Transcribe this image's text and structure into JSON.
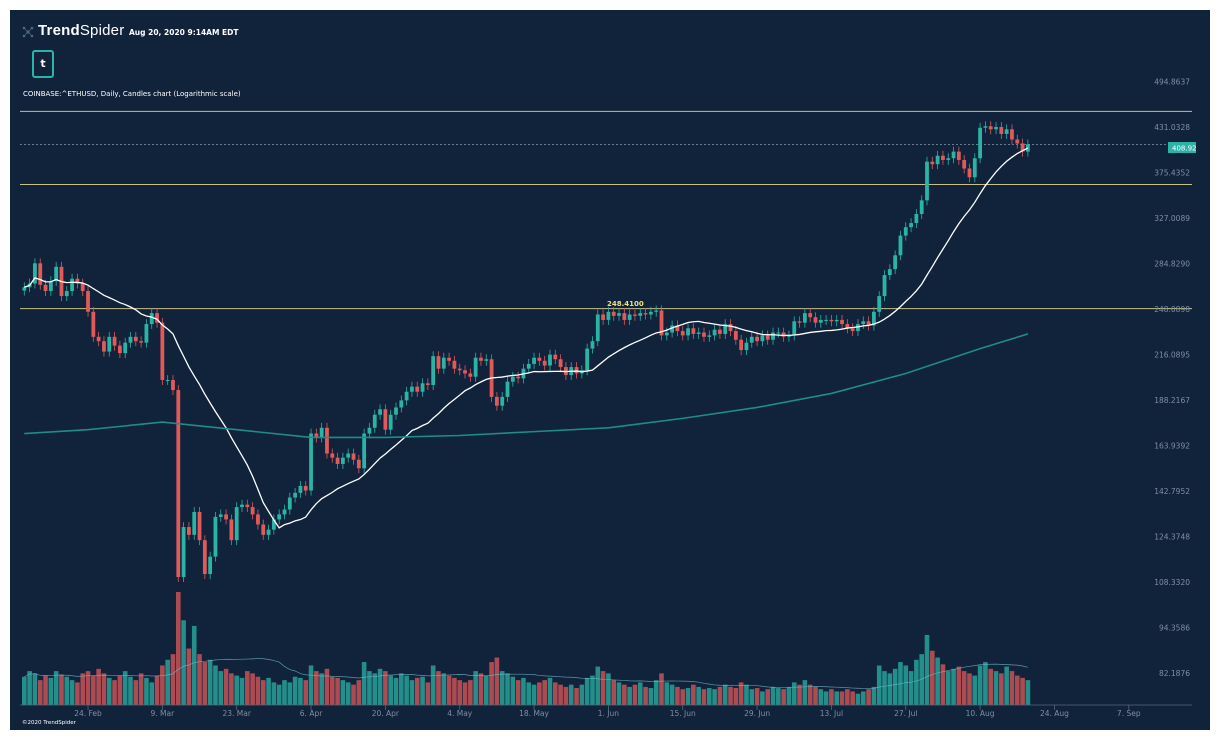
{
  "header": {
    "brand_bold": "Trend",
    "brand_light": "Spider",
    "timestamp": "Aug 20, 2020 9:14AM EDT",
    "ticker_icon": "t",
    "chart_title": "COINBASE:^ETHUSD, Daily, Candles chart (Logarithmic scale)"
  },
  "footer": {
    "copyright": "©2020 TrendSpider"
  },
  "colors": {
    "background": "#10233b",
    "up": "#2bb3a6",
    "down": "#e05a5a",
    "ma_short": "#ffffff",
    "ma_long": "#1f8c88",
    "level": "#c8c08a"
  },
  "chart_data": {
    "type": "candlestick",
    "title": "COINBASE:^ETHUSD, Daily, Candles chart (Logarithmic scale)",
    "y_scale": "log",
    "ylim": [
      78,
      540
    ],
    "y_ticks": [
      "494.8637",
      "431.0328",
      "375.4352",
      "327.0089",
      "284.8290",
      "248.0898",
      "216.0895",
      "188.2167",
      "163.9392",
      "142.7952",
      "124.3748",
      "108.3320",
      "94.3586",
      "82.1876"
    ],
    "x_ticks": [
      "24. Feb",
      "9. Mar",
      "23. Mar",
      "6. Apr",
      "20. Apr",
      "4. May",
      "18. May",
      "1. Jun",
      "15. Jun",
      "29. Jun",
      "13. Jul",
      "27. Jul",
      "10. Aug",
      "24. Aug",
      "7. Sep"
    ],
    "current_price": "408.92",
    "annotation": "248.4100",
    "horizontal_levels": [
      452,
      362,
      248.41
    ],
    "close": [
      265,
      268,
      285,
      267,
      262,
      270,
      282,
      258,
      262,
      272,
      268,
      262,
      246,
      228,
      225,
      218,
      228,
      222,
      217,
      224,
      228,
      225,
      224,
      237,
      245,
      238,
      200,
      200,
      194,
      110,
      128,
      125,
      134,
      123,
      111,
      117,
      132,
      133,
      131,
      123,
      136,
      137,
      136,
      133,
      129,
      125,
      127,
      131,
      133,
      135,
      140,
      142,
      145,
      143,
      170,
      168,
      173,
      160,
      158,
      155,
      158,
      160,
      157,
      153,
      170,
      173,
      180,
      183,
      172,
      180,
      184,
      188,
      193,
      196,
      193,
      198,
      197,
      215,
      207,
      214,
      212,
      207,
      206,
      204,
      202,
      214,
      212,
      213,
      190,
      185,
      190,
      199,
      202,
      201,
      207,
      210,
      214,
      212,
      209,
      216,
      213,
      208,
      203,
      208,
      204,
      206,
      220,
      225,
      244,
      240,
      246,
      243,
      245,
      240,
      244,
      243,
      245,
      244,
      246,
      247,
      229,
      231,
      236,
      232,
      229,
      234,
      230,
      231,
      228,
      229,
      233,
      230,
      237,
      232,
      226,
      219,
      224,
      228,
      225,
      229,
      226,
      231,
      231,
      228,
      229,
      239,
      238,
      245,
      242,
      238,
      240,
      240,
      239,
      240,
      237,
      234,
      232,
      237,
      239,
      236,
      246,
      258,
      275,
      280,
      292,
      310,
      318,
      322,
      331,
      345,
      388,
      385,
      395,
      390,
      392,
      400,
      390,
      380,
      370,
      392,
      430,
      432,
      428,
      431,
      422,
      428,
      415,
      410,
      400,
      408.92
    ],
    "volume_relative": [
      25,
      30,
      28,
      22,
      26,
      24,
      30,
      27,
      25,
      22,
      20,
      28,
      30,
      26,
      32,
      28,
      24,
      22,
      26,
      30,
      25,
      22,
      28,
      24,
      20,
      26,
      35,
      40,
      45,
      100,
      75,
      50,
      70,
      45,
      38,
      40,
      35,
      30,
      32,
      28,
      26,
      24,
      30,
      28,
      25,
      22,
      24,
      20,
      18,
      22,
      20,
      25,
      24,
      22,
      35,
      30,
      28,
      32,
      25,
      24,
      22,
      20,
      18,
      22,
      38,
      30,
      28,
      32,
      30,
      26,
      24,
      28,
      26,
      22,
      24,
      25,
      20,
      35,
      30,
      28,
      26,
      24,
      22,
      20,
      22,
      30,
      28,
      26,
      38,
      42,
      30,
      28,
      25,
      22,
      24,
      20,
      18,
      20,
      22,
      24,
      20,
      18,
      16,
      18,
      15,
      18,
      24,
      26,
      34,
      30,
      28,
      22,
      20,
      18,
      16,
      18,
      20,
      16,
      15,
      22,
      28,
      20,
      18,
      16,
      14,
      15,
      18,
      16,
      14,
      15,
      14,
      16,
      18,
      16,
      15,
      20,
      18,
      14,
      15,
      12,
      14,
      16,
      15,
      14,
      16,
      20,
      18,
      22,
      18,
      16,
      14,
      12,
      14,
      12,
      12,
      14,
      12,
      10,
      12,
      14,
      16,
      35,
      30,
      28,
      32,
      38,
      35,
      30,
      40,
      45,
      62,
      48,
      42,
      36,
      30,
      32,
      34,
      30,
      28,
      26,
      35,
      38,
      32,
      30,
      28,
      34,
      30,
      26,
      24,
      22
    ],
    "ma_short_period": 20,
    "ma_long_at_ticks": [
      172,
      176,
      172,
      168,
      168,
      169,
      171,
      173,
      178,
      184,
      192,
      204,
      220
    ],
    "ma_long_last": 230
  }
}
